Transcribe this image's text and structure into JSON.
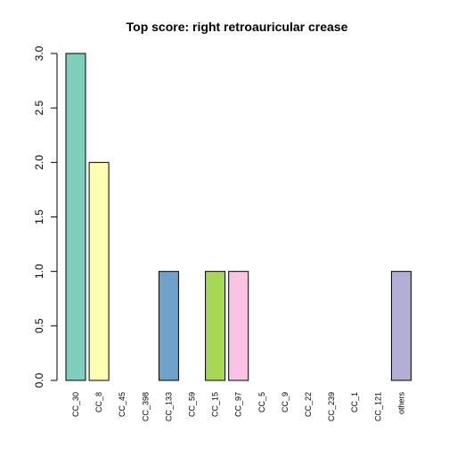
{
  "chart_data": {
    "type": "bar",
    "title": "Top score:  right retroauricular crease",
    "xlabel": "",
    "ylabel": "",
    "categories": [
      "CC_30",
      "CC_8",
      "CC_45",
      "CC_398",
      "CC_133",
      "CC_59",
      "CC_15",
      "CC_97",
      "CC_5",
      "CC_9",
      "CC_22",
      "CC_239",
      "CC_1",
      "CC_121",
      "others"
    ],
    "values": [
      3,
      2,
      0,
      0,
      1,
      0,
      1,
      1,
      0,
      0,
      0,
      0,
      0,
      0,
      1
    ],
    "colors": [
      "#7fcdbb",
      "#ffffb3",
      "#ffffb3",
      "#ffffb3",
      "#6fa2cb",
      "#6fa2cb",
      "#a6d854",
      "#f9c3e3",
      "#f9c3e3",
      "#f9c3e3",
      "#f9c3e3",
      "#f9c3e3",
      "#f9c3e3",
      "#f9c3e3",
      "#b3aed4"
    ],
    "bar_border_color": "#000000",
    "ylim": [
      0,
      3
    ],
    "yticks": [
      "0.0",
      "0.5",
      "1.0",
      "1.5",
      "2.0",
      "2.5",
      "3.0"
    ],
    "grid": false,
    "legend": "none"
  }
}
